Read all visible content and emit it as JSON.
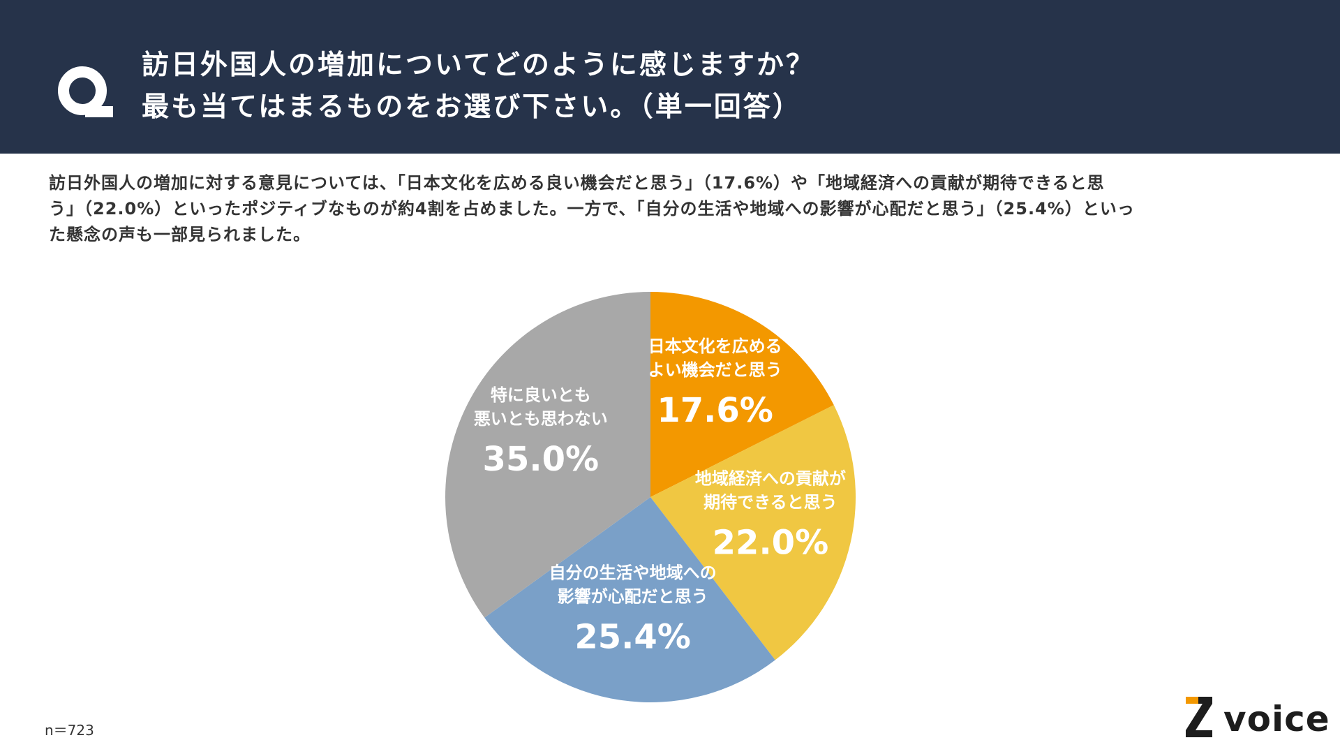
{
  "header": {
    "question_lines": [
      "訪日外国人の増加についてどのように感じますか？",
      "最も当てはまるものをお選び下さい。（単一回答）"
    ]
  },
  "summary": {
    "lines": [
      "訪日外国人の増加に対する意見については、「日本文化を広める良い機会だと思う」（17.6%）や「地域経済への貢献が期待できると思",
      "う」（22.0%）といったポジティブなものが約4割を占めました。一方で、「自分の生活や地域への影響が心配だと思う」（25.4%）といっ",
      "た懸念の声も一部見られました。"
    ]
  },
  "footer": {
    "sample_size": "n＝723",
    "logo_text": "voice"
  },
  "colors": {
    "header_bg": "#26334a",
    "slice_1": "#f39800",
    "slice_2": "#f0c742",
    "slice_3": "#7aa0c8",
    "slice_4": "#a8a8a8"
  },
  "chart_data": {
    "type": "pie",
    "start": "12 o'clock, clockwise",
    "slices": [
      {
        "label_lines": [
          "日本文化を広める",
          "よい機会だと思う"
        ],
        "value": 17.6,
        "value_label": "17.6%",
        "color": "#f39800"
      },
      {
        "label_lines": [
          "地域経済への貢献が",
          "期待できると思う"
        ],
        "value": 22.0,
        "value_label": "22.0%",
        "color": "#f0c742"
      },
      {
        "label_lines": [
          "自分の生活や地域への",
          "影響が心配だと思う"
        ],
        "value": 25.4,
        "value_label": "25.4%",
        "color": "#7aa0c8"
      },
      {
        "label_lines": [
          "特に良いとも",
          "悪いとも思わない"
        ],
        "value": 35.0,
        "value_label": "35.0%",
        "color": "#a8a8a8"
      }
    ]
  }
}
